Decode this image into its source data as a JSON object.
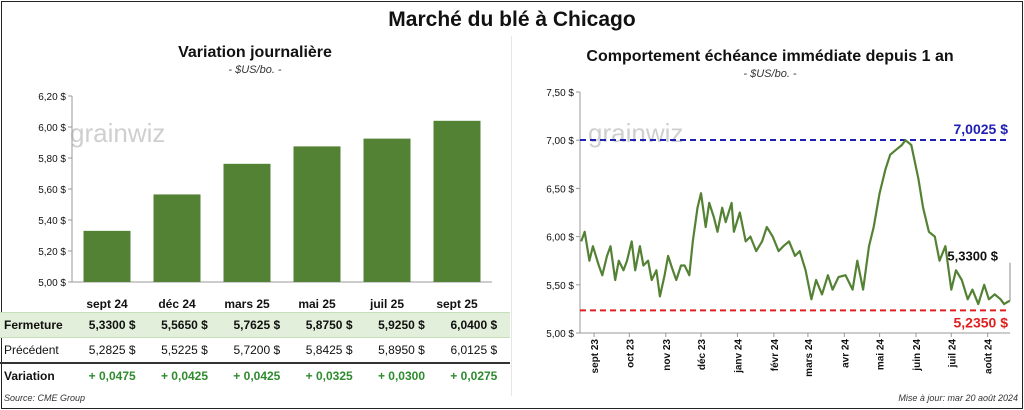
{
  "title": "Marché du blé à Chicago",
  "left_panel": {
    "title": "Variation journalière",
    "unit": "- $US/bo. -",
    "watermark": "grainwiz",
    "table": {
      "rows": [
        {
          "label": "Fermeture",
          "values": [
            "5,3300 $",
            "5,5650 $",
            "5,7625 $",
            "5,8750 $",
            "5,9250 $",
            "6,0400 $"
          ]
        },
        {
          "label": "Précédent",
          "values": [
            "5,2825 $",
            "5,5225 $",
            "5,7200 $",
            "5,8425 $",
            "5,8950 $",
            "6,0125 $"
          ]
        },
        {
          "label": "Variation",
          "values": [
            "+ 0,0475",
            "+ 0,0425",
            "+ 0,0425",
            "+ 0,0325",
            "+ 0,0300",
            "+ 0,0275"
          ]
        }
      ]
    }
  },
  "right_panel": {
    "title": "Comportement échéance immédiate depuis 1 an",
    "unit": "- $US/bo. -",
    "watermark": "grainwiz"
  },
  "footer": {
    "source": "Source: CME Group",
    "update": "Mise à jour: mar 20 août 2024"
  },
  "chart_data": [
    {
      "type": "bar",
      "categories": [
        "sept 24",
        "déc 24",
        "mars 25",
        "mai 25",
        "juil 25",
        "sept 25"
      ],
      "values": [
        5.33,
        5.565,
        5.7625,
        5.875,
        5.925,
        6.04
      ],
      "ylim": [
        5.0,
        6.2
      ],
      "yticks": [
        5.0,
        5.2,
        5.4,
        5.6,
        5.8,
        6.0,
        6.2
      ],
      "ytick_labels": [
        "5,00 $",
        "5,20 $",
        "5,40 $",
        "5,60 $",
        "5,80 $",
        "6,00 $",
        "6,20 $"
      ],
      "color": "#548235",
      "grid": false
    },
    {
      "type": "line",
      "ylim": [
        5.0,
        7.5
      ],
      "yticks": [
        5.0,
        5.5,
        6.0,
        6.5,
        7.0,
        7.5
      ],
      "ytick_labels": [
        "5,00 $",
        "5,50 $",
        "6,00 $",
        "6,50 $",
        "7,00 $",
        "7,50 $"
      ],
      "xlim": [
        "2023-08-20",
        "2024-08-20"
      ],
      "xtick_dates": [
        "2023-09-01",
        "2023-10-01",
        "2023-11-01",
        "2023-12-01",
        "2024-01-01",
        "2024-02-01",
        "2024-03-01",
        "2024-04-01",
        "2024-05-01",
        "2024-06-01",
        "2024-07-01",
        "2024-08-01"
      ],
      "xtick_labels": [
        "sept 23",
        "oct 23",
        "nov 23",
        "déc 23",
        "janv 24",
        "févr 24",
        "mars 24",
        "avr 24",
        "mai 24",
        "juin 24",
        "juil 24",
        "août 24"
      ],
      "color": "#548235",
      "x": [
        "2023-08-21",
        "2023-08-24",
        "2023-08-28",
        "2023-08-31",
        "2023-09-05",
        "2023-09-08",
        "2023-09-12",
        "2023-09-15",
        "2023-09-19",
        "2023-09-22",
        "2023-09-26",
        "2023-09-29",
        "2023-10-03",
        "2023-10-06",
        "2023-10-10",
        "2023-10-13",
        "2023-10-17",
        "2023-10-20",
        "2023-10-24",
        "2023-10-27",
        "2023-10-31",
        "2023-11-03",
        "2023-11-07",
        "2023-11-10",
        "2023-11-14",
        "2023-11-17",
        "2023-11-21",
        "2023-11-24",
        "2023-11-28",
        "2023-12-01",
        "2023-12-05",
        "2023-12-08",
        "2023-12-12",
        "2023-12-15",
        "2023-12-19",
        "2023-12-22",
        "2023-12-27",
        "2023-12-29",
        "2024-01-03",
        "2024-01-08",
        "2024-01-12",
        "2024-01-17",
        "2024-01-22",
        "2024-01-26",
        "2024-01-31",
        "2024-02-05",
        "2024-02-09",
        "2024-02-14",
        "2024-02-19",
        "2024-02-23",
        "2024-02-28",
        "2024-03-04",
        "2024-03-08",
        "2024-03-13",
        "2024-03-18",
        "2024-03-22",
        "2024-03-27",
        "2024-04-02",
        "2024-04-08",
        "2024-04-12",
        "2024-04-17",
        "2024-04-22",
        "2024-04-26",
        "2024-05-01",
        "2024-05-06",
        "2024-05-10",
        "2024-05-15",
        "2024-05-20",
        "2024-05-23",
        "2024-05-28",
        "2024-06-03",
        "2024-06-07",
        "2024-06-12",
        "2024-06-17",
        "2024-06-21",
        "2024-06-26",
        "2024-07-01",
        "2024-07-05",
        "2024-07-10",
        "2024-07-15",
        "2024-07-19",
        "2024-07-24",
        "2024-07-29",
        "2024-08-02",
        "2024-08-07",
        "2024-08-12",
        "2024-08-15",
        "2024-08-19",
        "2024-08-20"
      ],
      "values": [
        5.95,
        6.05,
        5.75,
        5.9,
        5.7,
        5.6,
        5.8,
        5.9,
        5.55,
        5.75,
        5.65,
        5.75,
        5.95,
        5.65,
        5.9,
        5.7,
        5.75,
        5.55,
        5.65,
        5.38,
        5.6,
        5.8,
        5.65,
        5.55,
        5.7,
        5.7,
        5.6,
        5.95,
        6.3,
        6.45,
        6.1,
        6.35,
        6.2,
        6.05,
        6.3,
        6.15,
        6.35,
        6.05,
        6.25,
        5.95,
        6.0,
        5.85,
        5.95,
        6.1,
        6.0,
        5.85,
        5.9,
        5.95,
        5.8,
        5.85,
        5.65,
        5.35,
        5.55,
        5.4,
        5.6,
        5.45,
        5.58,
        5.6,
        5.45,
        5.75,
        5.45,
        5.9,
        6.1,
        6.45,
        6.7,
        6.85,
        6.9,
        6.95,
        7.0,
        6.95,
        6.6,
        6.3,
        6.05,
        6.0,
        5.75,
        5.9,
        5.45,
        5.65,
        5.55,
        5.35,
        5.45,
        5.3,
        5.5,
        5.35,
        5.4,
        5.35,
        5.3,
        5.33,
        5.33
      ],
      "reference_lines": [
        {
          "value": 7.0025,
          "label": "7,0025 $",
          "color": "#1f1fb4"
        },
        {
          "value": 5.235,
          "label": "5,2350 $",
          "color": "#e02020"
        }
      ],
      "last_label": "5,3300 $",
      "grid": false
    }
  ]
}
